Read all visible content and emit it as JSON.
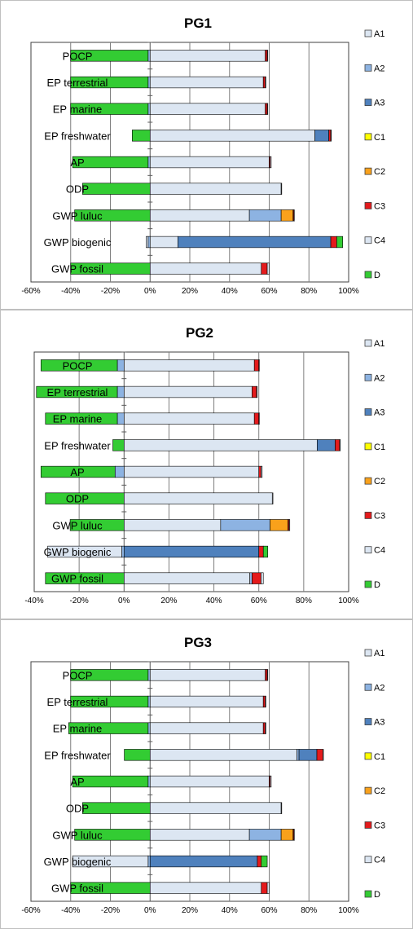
{
  "chart_data": [
    {
      "type": "bar",
      "orientation": "horizontal",
      "stacked": true,
      "title": "PG1",
      "categories": [
        "POCP",
        "EP terrestrial",
        "EP marine",
        "EP freshwater",
        "AP",
        "ODP",
        "GWP luluc",
        "GWP biogenic",
        "GWP fossil"
      ],
      "series": [
        {
          "name": "A1",
          "values": [
            58,
            57,
            58,
            83,
            60,
            66,
            50,
            14,
            56
          ]
        },
        {
          "name": "A2",
          "values": [
            -1,
            -1,
            -1,
            0,
            -1,
            0,
            16,
            -1,
            0
          ]
        },
        {
          "name": "A3",
          "values": [
            0,
            0,
            0,
            7,
            0,
            0,
            0,
            77,
            0
          ]
        },
        {
          "name": "C1",
          "values": [
            0,
            0,
            0,
            0,
            0,
            0,
            0,
            0,
            0
          ]
        },
        {
          "name": "C2",
          "values": [
            0,
            0,
            0,
            0,
            0,
            0,
            6,
            0,
            0
          ]
        },
        {
          "name": "C3",
          "values": [
            1,
            1,
            1,
            1,
            0.5,
            0,
            0.4,
            3,
            3
          ]
        },
        {
          "name": "C4",
          "values": [
            0.3,
            0.3,
            0.3,
            0.3,
            0.5,
            0.3,
            0.3,
            -1,
            1
          ]
        },
        {
          "name": "D",
          "values": [
            -39,
            -39,
            -39,
            -9,
            -38,
            -34,
            -38,
            3,
            -40
          ]
        }
      ],
      "xlim": [
        -60,
        100
      ],
      "xticks": [
        -60,
        -40,
        -20,
        0,
        20,
        40,
        60,
        80,
        100
      ],
      "tick_suffix": "%",
      "grid": true,
      "legend_position": "right"
    },
    {
      "type": "bar",
      "orientation": "horizontal",
      "stacked": true,
      "title": "PG2",
      "categories": [
        "POCP",
        "EP terrestrial",
        "EP marine",
        "EP freshwater",
        "AP",
        "ODP",
        "GWP luluc",
        "GWP biogenic",
        "GWP fossil"
      ],
      "series": [
        {
          "name": "A1",
          "values": [
            58,
            57,
            58,
            86,
            60,
            66,
            43,
            0,
            56
          ]
        },
        {
          "name": "A2",
          "values": [
            -3,
            -3,
            -3,
            0,
            -4,
            0,
            22,
            -1,
            1
          ]
        },
        {
          "name": "A3",
          "values": [
            0,
            0,
            0,
            8,
            0,
            0,
            0,
            60,
            0
          ]
        },
        {
          "name": "C1",
          "values": [
            0,
            0,
            0,
            0,
            0,
            0,
            0,
            0,
            0
          ]
        },
        {
          "name": "C2",
          "values": [
            0,
            0,
            0,
            0,
            0,
            0,
            8,
            0,
            0
          ]
        },
        {
          "name": "C3",
          "values": [
            2,
            2,
            2,
            2,
            1,
            0,
            0.5,
            2,
            4
          ]
        },
        {
          "name": "C4",
          "values": [
            0.3,
            0.3,
            0.3,
            0.3,
            0.5,
            0.3,
            0.3,
            -33,
            1
          ]
        },
        {
          "name": "D",
          "values": [
            -34,
            -36,
            -32,
            -5,
            -33,
            -35,
            -24,
            2,
            -35
          ]
        }
      ],
      "xlim": [
        -40,
        100
      ],
      "xticks": [
        -40,
        -20,
        0,
        20,
        40,
        60,
        80,
        100
      ],
      "tick_suffix": "%",
      "grid": true,
      "legend_position": "right"
    },
    {
      "type": "bar",
      "orientation": "horizontal",
      "stacked": true,
      "title": "PG3",
      "categories": [
        "POCP",
        "EP terrestrial",
        "EP marine",
        "EP freshwater",
        "AP",
        "ODP",
        "GWP luluc",
        "GWP biogenic",
        "GWP fossil"
      ],
      "series": [
        {
          "name": "A1",
          "values": [
            58,
            57,
            57,
            74,
            60,
            66,
            50,
            0,
            56
          ]
        },
        {
          "name": "A2",
          "values": [
            -1,
            -1,
            -1,
            1,
            -1,
            0,
            16,
            -1,
            0
          ]
        },
        {
          "name": "A3",
          "values": [
            0,
            0,
            0,
            9,
            0,
            0,
            0,
            54,
            0
          ]
        },
        {
          "name": "C1",
          "values": [
            0,
            0,
            0,
            0,
            0,
            0,
            0,
            0,
            0
          ]
        },
        {
          "name": "C2",
          "values": [
            0,
            0,
            0,
            0,
            0,
            0,
            6,
            0,
            0
          ]
        },
        {
          "name": "C3",
          "values": [
            1,
            1,
            1,
            3,
            0.5,
            0,
            0.4,
            2,
            3
          ]
        },
        {
          "name": "C4",
          "values": [
            0.3,
            0.3,
            0.3,
            0.3,
            0.5,
            0.3,
            0.3,
            -38,
            1
          ]
        },
        {
          "name": "D",
          "values": [
            -39,
            -39,
            -40,
            -13,
            -38,
            -34,
            -38,
            3,
            -40
          ]
        }
      ],
      "xlim": [
        -60,
        100
      ],
      "xticks": [
        -60,
        -40,
        -20,
        0,
        20,
        40,
        60,
        80,
        100
      ],
      "tick_suffix": "%",
      "grid": true,
      "legend_position": "right"
    }
  ],
  "colors": {
    "A1": "#dce6f2",
    "A2": "#8db3e2",
    "A3": "#4f81bd",
    "C1": "#ffff00",
    "C2": "#f9a11b",
    "C3": "#e41a1c",
    "C4": "#dce6f2",
    "D": "#33cc33",
    "grid": "#7f7f7f",
    "bar_outline": "#000000",
    "text": "#000000"
  }
}
